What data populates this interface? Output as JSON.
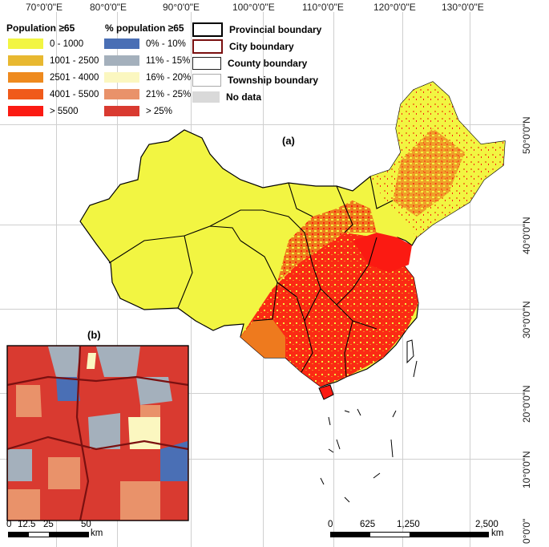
{
  "map": {
    "longitude_labels": [
      "70°0'0\"E",
      "80°0'0\"E",
      "90°0'0\"E",
      "100°0'0\"E",
      "110°0'0\"E",
      "120°0'0\"E",
      "130°0'0\"E"
    ],
    "latitude_labels": [
      "50°0'0\"N",
      "40°0'0\"N",
      "30°0'0\"N",
      "20°0'0\"N",
      "10°0'0\"N",
      "0°0'0\""
    ],
    "panel_a_label": "(a)",
    "panel_b_label": "(b)"
  },
  "legend": {
    "population_title": "Population ≥65",
    "population_classes": [
      {
        "label": "0 - 1000",
        "color": "#f2f542"
      },
      {
        "label": "1001 - 2500",
        "color": "#e8b830"
      },
      {
        "label": "2501 - 4000",
        "color": "#ee8a1e"
      },
      {
        "label": "4001 - 5500",
        "color": "#f05a1a"
      },
      {
        "label": "> 5500",
        "color": "#fb1a12"
      }
    ],
    "percent_title": "% population ≥65",
    "percent_classes": [
      {
        "label": "0% - 10%",
        "color": "#4a6fb5"
      },
      {
        "label": "11% - 15%",
        "color": "#a4b0bc"
      },
      {
        "label": "16% - 20%",
        "color": "#fbf7c0"
      },
      {
        "label": "21% - 25%",
        "color": "#e9926a"
      },
      {
        "label": "> 25%",
        "color": "#d93a30"
      }
    ],
    "boundaries": [
      {
        "label": "Provincial boundary",
        "color": "#000000"
      },
      {
        "label": "City boundary",
        "color": "#7a1010"
      },
      {
        "label": "County boundary",
        "color": "#222222"
      },
      {
        "label": "Township boundary",
        "color": "#888888"
      },
      {
        "label": "No data",
        "color": "#d9d9d9"
      }
    ]
  },
  "scale_a": {
    "ticks": [
      "0",
      "625",
      "1,250",
      "2,500"
    ],
    "unit": "km"
  },
  "scale_b": {
    "ticks": [
      "0",
      "12.5",
      "25",
      "50"
    ],
    "unit": "km"
  }
}
